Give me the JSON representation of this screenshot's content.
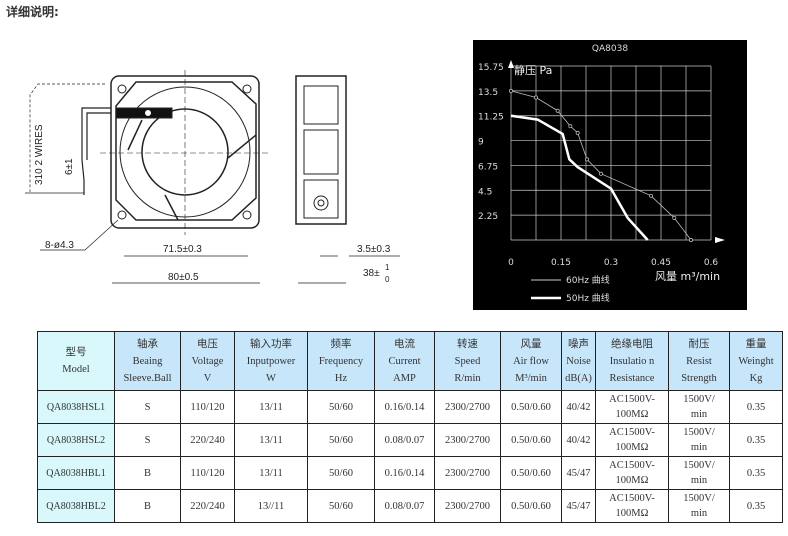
{
  "title": "详细说明:",
  "drawing": {
    "wires_label": "310   2 WIRES",
    "wire_tol": "6±1",
    "holes": "8-ø4.3",
    "inner": "71.5±0.3",
    "outer": "80±0.5",
    "flange": "3.5±0.3",
    "depth": "38±",
    "depth_tol_top": "1",
    "depth_tol_bottom": "0"
  },
  "chart_data": {
    "type": "line",
    "title": "QA8038",
    "ylabel": "静压 Pa",
    "xlabel": "风量 m³/min",
    "xlim": [
      0,
      0.6
    ],
    "ylim": [
      0,
      15.75
    ],
    "xticks": [
      "0",
      "0.15",
      "0.3",
      "0.45",
      "0.6"
    ],
    "yticks": [
      "15.75",
      "13.5",
      "11.25",
      "9",
      "6.75",
      "4.5",
      "2.25"
    ],
    "grid": true,
    "background": "#000000",
    "legend": "bottom-left",
    "series": [
      {
        "name": "60Hz  曲线",
        "x": [
          0,
          0.075,
          0.14,
          0.178,
          0.2,
          0.228,
          0.27,
          0.42,
          0.49,
          0.54
        ],
        "y": [
          13.5,
          12.9,
          11.7,
          10.3,
          9.7,
          7.3,
          6.0,
          4.0,
          2.0,
          0
        ],
        "markers": true
      },
      {
        "name": "50Hz  曲线",
        "x": [
          0,
          0.08,
          0.155,
          0.175,
          0.2,
          0.3,
          0.35,
          0.41
        ],
        "y": [
          11.25,
          10.9,
          9.6,
          7.3,
          6.6,
          4.65,
          2.0,
          0
        ],
        "markers": false
      }
    ]
  },
  "table": {
    "headers": [
      [
        "型号",
        "Model"
      ],
      [
        "轴承",
        "Beaing",
        "Sleeve.Ball"
      ],
      [
        "电压",
        "Voltage",
        "V"
      ],
      [
        "输入功率",
        "Inputpower",
        "W"
      ],
      [
        "频率",
        "Frequency",
        "Hz"
      ],
      [
        "电流",
        "Current",
        "AMP"
      ],
      [
        "转速",
        "Speed",
        "R/min"
      ],
      [
        "风量",
        "Air flow",
        "M³/min"
      ],
      [
        "噪声",
        "Noise",
        "dB(A)"
      ],
      [
        "绝缘电阻",
        "Insulatio n",
        "Resistance"
      ],
      [
        "耐压",
        "Resist",
        "Strength"
      ],
      [
        "重量",
        "Weinght",
        "Kg"
      ]
    ],
    "rows": [
      [
        "QA8038HSL1",
        "S",
        "110/120",
        "13/11",
        "50/60",
        "0.16/0.14",
        "2300/2700",
        "0.50/0.60",
        "40/42",
        "AC1500V-\n100MΩ",
        "1500V/\nmin",
        "0.35"
      ],
      [
        "QA8038HSL2",
        "S",
        "220/240",
        "13/11",
        "50/60",
        "0.08/0.07",
        "2300/2700",
        "0.50/0.60",
        "40/42",
        "AC1500V-\n100MΩ",
        "1500V/\nmin",
        "0.35"
      ],
      [
        "QA8038HBL1",
        "B",
        "110/120",
        "13/11",
        "50/60",
        "0.16/0.14",
        "2300/2700",
        "0.50/0.60",
        "45/47",
        "AC1500V-\n100MΩ",
        "1500V/\nmin",
        "0.35"
      ],
      [
        "QA8038HBL2",
        "B",
        "220/240",
        "13//11",
        "50/60",
        "0.08/0.07",
        "2300/2700",
        "0.50/0.60",
        "45/47",
        "AC1500V-\n100MΩ",
        "1500V/\nmin",
        "0.35"
      ]
    ]
  }
}
